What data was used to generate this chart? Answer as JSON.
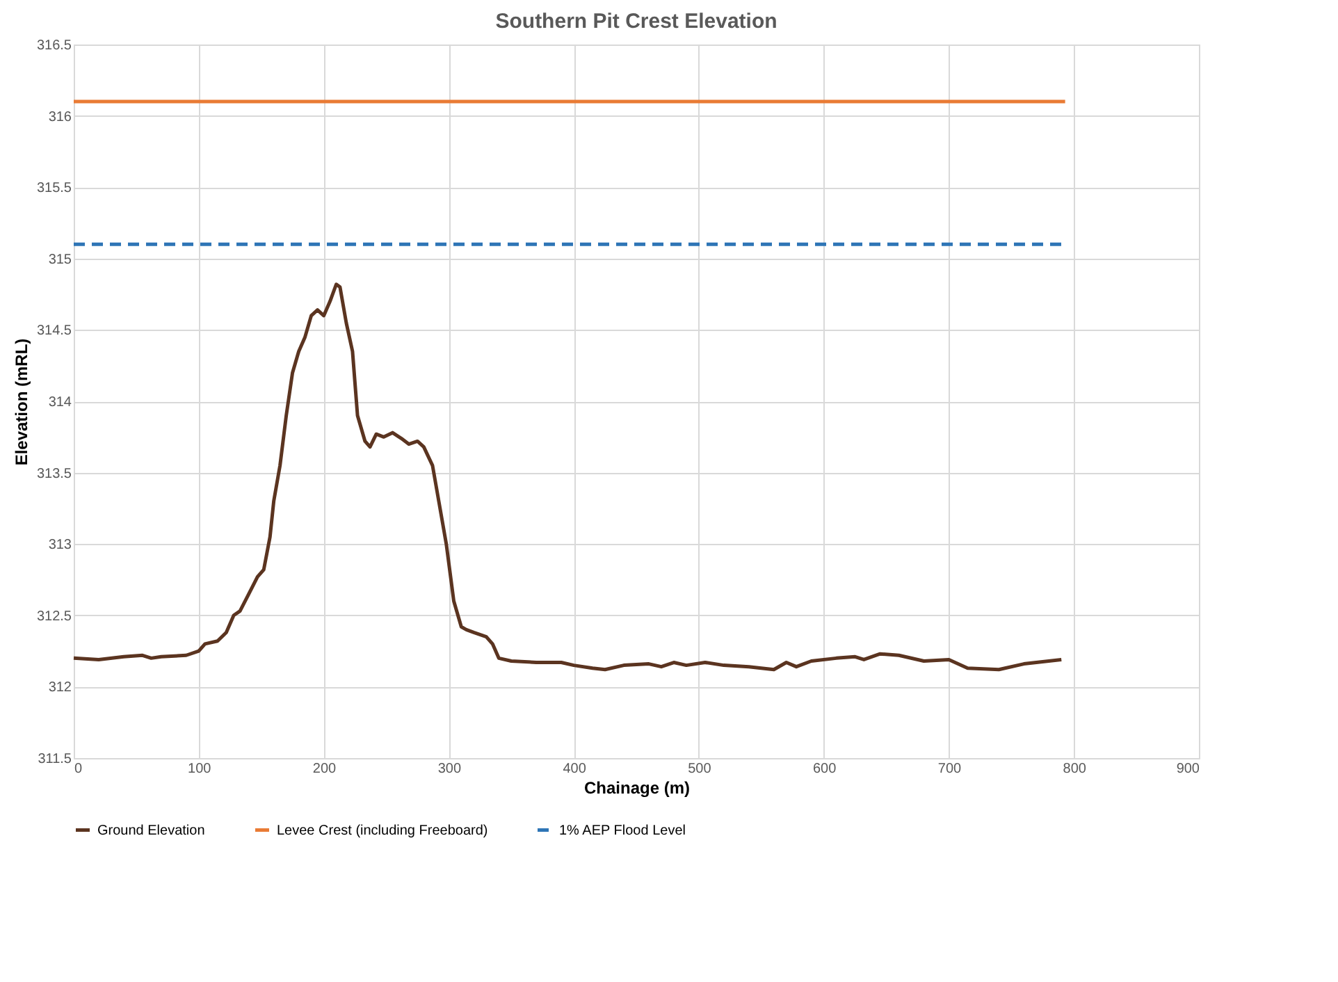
{
  "chart_data": {
    "type": "line",
    "title": "Southern Pit Crest Elevation",
    "xlabel": "Chainage (m)",
    "ylabel": "Elevation (mRL)",
    "xlim": [
      0,
      900
    ],
    "xticks": [
      0,
      100,
      200,
      300,
      400,
      500,
      600,
      700,
      800,
      900
    ],
    "ylim": [
      311.5,
      316.5
    ],
    "yticks": [
      311.5,
      312,
      312.5,
      313,
      313.5,
      314,
      314.5,
      315,
      315.5,
      316,
      316.5
    ],
    "grid": true,
    "legend": "bottom",
    "marker": "none",
    "series": [
      {
        "name": "Ground Elevation",
        "color": "#5b3420",
        "line_style": "solid",
        "x": [
          0,
          20,
          40,
          55,
          62,
          70,
          90,
          100,
          105,
          115,
          122,
          128,
          133,
          140,
          147,
          152,
          157,
          160,
          165,
          170,
          175,
          180,
          185,
          190,
          195,
          200,
          205,
          210,
          213,
          218,
          223,
          227,
          233,
          237,
          242,
          248,
          255,
          262,
          268,
          275,
          280,
          287,
          292,
          298,
          304,
          310,
          314,
          320,
          330,
          335,
          340,
          350,
          370,
          390,
          400,
          415,
          425,
          440,
          460,
          470,
          480,
          490,
          505,
          520,
          540,
          560,
          570,
          578,
          590,
          610,
          625,
          632,
          645,
          660,
          680,
          700,
          715,
          740,
          760,
          770,
          790
        ],
        "values": [
          312.2,
          312.19,
          312.21,
          312.22,
          312.2,
          312.21,
          312.22,
          312.25,
          312.3,
          312.32,
          312.38,
          312.5,
          312.53,
          312.65,
          312.77,
          312.82,
          313.05,
          313.3,
          313.55,
          313.9,
          314.2,
          314.35,
          314.45,
          314.6,
          314.64,
          314.6,
          314.7,
          314.82,
          314.8,
          314.55,
          314.35,
          313.9,
          313.72,
          313.68,
          313.77,
          313.75,
          313.78,
          313.74,
          313.7,
          313.72,
          313.68,
          313.55,
          313.3,
          313.0,
          312.6,
          312.42,
          312.4,
          312.38,
          312.35,
          312.3,
          312.2,
          312.18,
          312.17,
          312.17,
          312.15,
          312.13,
          312.12,
          312.15,
          312.16,
          312.14,
          312.17,
          312.15,
          312.17,
          312.15,
          312.14,
          312.12,
          312.17,
          312.14,
          312.18,
          312.2,
          312.21,
          312.19,
          312.23,
          312.22,
          312.18,
          312.19,
          312.13,
          312.12,
          312.16,
          312.17,
          312.19
        ]
      },
      {
        "name": "Levee Crest (including Freeboard)",
        "color": "#e97b35",
        "line_style": "solid",
        "x": [
          0,
          793
        ],
        "values": [
          316.1,
          316.1
        ]
      },
      {
        "name": "1% AEP Flood Level",
        "color": "#2e75b6",
        "line_style": "dashed",
        "x": [
          0,
          793
        ],
        "values": [
          315.1,
          315.1
        ]
      }
    ]
  }
}
